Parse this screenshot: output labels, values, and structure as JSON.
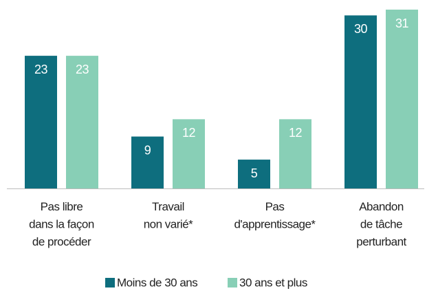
{
  "chart_data": {
    "type": "bar",
    "categories": [
      [
        "Pas libre",
        "dans la façon",
        "de procéder"
      ],
      [
        "Travail",
        "non varié*"
      ],
      [
        "Pas",
        "d'apprentissage*"
      ],
      [
        "Abandon",
        "de tâche",
        "perturbant"
      ]
    ],
    "series": [
      {
        "name": "Moins de 30 ans",
        "color": "#0e6e7e",
        "values": [
          23,
          9,
          5,
          30
        ]
      },
      {
        "name": "30 ans et plus",
        "color": "#88cfb6",
        "values": [
          23,
          12,
          12,
          31
        ]
      }
    ]
  }
}
